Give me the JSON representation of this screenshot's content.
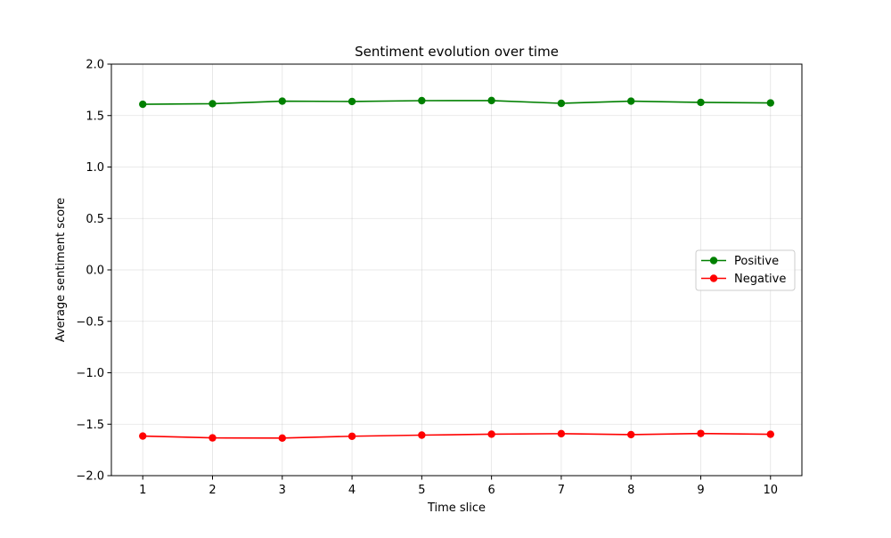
{
  "chart_data": {
    "type": "line",
    "title": "Sentiment evolution over time",
    "xlabel": "Time slice",
    "ylabel": "Average sentiment score",
    "x": [
      1,
      2,
      3,
      4,
      5,
      6,
      7,
      8,
      9,
      10
    ],
    "x_tick_labels": [
      "1",
      "2",
      "3",
      "4",
      "5",
      "6",
      "7",
      "8",
      "9",
      "10"
    ],
    "xlim": [
      0.55,
      10.45
    ],
    "ylim": [
      -2.0,
      2.0
    ],
    "y_ticks": [
      -2.0,
      -1.5,
      -1.0,
      -0.5,
      0.0,
      0.5,
      1.0,
      1.5,
      2.0
    ],
    "y_tick_labels": [
      "−2.0",
      "−1.5",
      "−1.0",
      "−0.5",
      "0.0",
      "0.5",
      "1.0",
      "1.5",
      "2.0"
    ],
    "grid": true,
    "legend_position": "center-right",
    "series": [
      {
        "name": "Positive",
        "color": "#008000",
        "marker": "circle",
        "values": [
          1.61,
          1.615,
          1.64,
          1.637,
          1.645,
          1.646,
          1.619,
          1.64,
          1.628,
          1.623
        ]
      },
      {
        "name": "Negative",
        "color": "#ff0000",
        "marker": "circle",
        "values": [
          -1.615,
          -1.633,
          -1.635,
          -1.617,
          -1.606,
          -1.597,
          -1.592,
          -1.601,
          -1.59,
          -1.598
        ]
      }
    ]
  }
}
